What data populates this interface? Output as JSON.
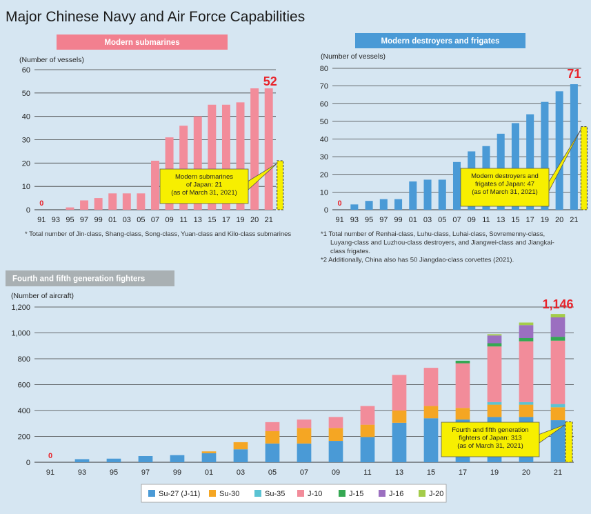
{
  "page_title": "Major Chinese Navy and Air Force Capabilities",
  "colors": {
    "submarine_bar": "#f28c9a",
    "destroyer_bar": "#4a9ad6",
    "highlight": "#e8232a",
    "japan_callout": "#f7ef00",
    "header_red": "#f2808f",
    "header_blue": "#4a9ad6",
    "header_gray": "#a9b0b3"
  },
  "chart_data": [
    {
      "type": "bar",
      "title": "Modern submarines",
      "ylabel": "(Number of vessels)",
      "ylim": [
        0,
        60
      ],
      "yticks": [
        "0",
        "10",
        "20",
        "30",
        "40",
        "50",
        "60"
      ],
      "categories": [
        "91",
        "93",
        "95",
        "97",
        "99",
        "01",
        "03",
        "05",
        "07",
        "09",
        "11",
        "13",
        "15",
        "17",
        "19",
        "20",
        "21"
      ],
      "values": [
        0,
        0,
        1,
        4,
        5,
        7,
        7,
        7,
        21,
        31,
        36,
        40,
        45,
        45,
        46,
        52,
        52
      ],
      "zero_label": "0",
      "peak_label": "52",
      "japan": {
        "value": 21,
        "label": "Modern submarines\nof Japan: 21\n(as of March 31, 2021)"
      },
      "notes": [
        "* Total number of Jin-class, Shang-class, Song-class, Yuan-class and Kilo-class submarines"
      ]
    },
    {
      "type": "bar",
      "title": "Modern destroyers and frigates",
      "ylabel": "(Number of vessels)",
      "ylim": [
        0,
        80
      ],
      "yticks": [
        "0",
        "10",
        "20",
        "30",
        "40",
        "50",
        "60",
        "70",
        "80"
      ],
      "categories": [
        "91",
        "93",
        "95",
        "97",
        "99",
        "01",
        "03",
        "05",
        "07",
        "09",
        "11",
        "13",
        "15",
        "17",
        "19",
        "20",
        "21"
      ],
      "values": [
        0,
        3,
        5,
        6,
        6,
        16,
        17,
        17,
        27,
        33,
        36,
        43,
        49,
        54,
        61,
        67,
        71
      ],
      "zero_label": "0",
      "peak_label": "71",
      "japan": {
        "value": 47,
        "label": "Modern destroyers and\nfrigates of Japan: 47\n(as of March 31, 2021)"
      },
      "notes": [
        "*1 Total number of Renhai-class, Luhu-class, Luhai-class, Sovremenny-class,",
        "Luyang-class and Luzhou-class destroyers, and Jiangwei-class and Jiangkai-",
        "class frigates.",
        "*2 Additionally, China also has 50 Jiangdao-class corvettes (2021)."
      ]
    },
    {
      "type": "bar",
      "stacked": true,
      "title": "Fourth and fifth generation fighters",
      "ylabel": "(Number of aircraft)",
      "ylim": [
        0,
        1200
      ],
      "yticks": [
        "0",
        "200",
        "400",
        "600",
        "800",
        "1,000",
        "1,200"
      ],
      "categories": [
        "91",
        "93",
        "95",
        "97",
        "99",
        "01",
        "03",
        "05",
        "07",
        "09",
        "11",
        "13",
        "15",
        "17",
        "19",
        "20",
        "21"
      ],
      "series": [
        {
          "name": "Su-27 (J-11)",
          "color": "#4a9ad6",
          "values": [
            0,
            24,
            28,
            48,
            55,
            70,
            100,
            145,
            145,
            165,
            195,
            305,
            340,
            330,
            350,
            350,
            325
          ]
        },
        {
          "name": "Su-30",
          "color": "#f5a623",
          "values": [
            0,
            0,
            0,
            0,
            0,
            14,
            55,
            95,
            120,
            100,
            95,
            95,
            95,
            90,
            95,
            95,
            100
          ]
        },
        {
          "name": "Su-35",
          "color": "#5bc3d3",
          "values": [
            0,
            0,
            0,
            0,
            0,
            0,
            0,
            0,
            0,
            0,
            0,
            0,
            0,
            0,
            20,
            20,
            25
          ]
        },
        {
          "name": "J-10",
          "color": "#f28c9a",
          "values": [
            0,
            0,
            0,
            0,
            0,
            0,
            0,
            70,
            65,
            85,
            145,
            275,
            295,
            345,
            430,
            470,
            490
          ]
        },
        {
          "name": "J-15",
          "color": "#35a853",
          "values": [
            0,
            0,
            0,
            0,
            0,
            0,
            0,
            0,
            0,
            0,
            0,
            0,
            0,
            20,
            25,
            25,
            30
          ]
        },
        {
          "name": "J-16",
          "color": "#9b6fc0",
          "values": [
            0,
            0,
            0,
            0,
            0,
            0,
            0,
            0,
            0,
            0,
            0,
            0,
            0,
            0,
            60,
            100,
            150
          ]
        },
        {
          "name": "J-20",
          "color": "#a4cc4a",
          "values": [
            0,
            0,
            0,
            0,
            0,
            0,
            0,
            0,
            0,
            0,
            0,
            0,
            0,
            0,
            10,
            20,
            26
          ]
        }
      ],
      "zero_label": "0",
      "peak_label": "1,146",
      "japan": {
        "value": 313,
        "label": "Fourth and fifth generation\nfighters of Japan: 313\n(as of March 31, 2021)"
      },
      "legend": [
        "Su-27 (J-11)",
        "Su-30",
        "Su-35",
        "J-10",
        "J-15",
        "J-16",
        "J-20"
      ],
      "legend_position": "bottom-center"
    }
  ]
}
